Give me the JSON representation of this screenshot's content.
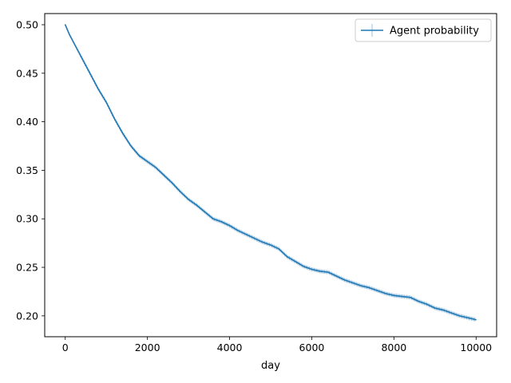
{
  "chart_data": {
    "type": "line",
    "xlabel": "day",
    "ylabel": "",
    "title": "",
    "xlim": [
      -500,
      10500
    ],
    "ylim": [
      0.1785,
      0.5115
    ],
    "xticks": [
      0,
      2000,
      4000,
      6000,
      8000,
      10000
    ],
    "xtick_labels": [
      "0",
      "2000",
      "4000",
      "6000",
      "8000",
      "10000"
    ],
    "yticks": [
      0.2,
      0.25,
      0.3,
      0.35,
      0.4,
      0.45,
      0.5
    ],
    "ytick_labels": [
      "0.20",
      "0.25",
      "0.30",
      "0.35",
      "0.40",
      "0.45",
      "0.50"
    ],
    "grid": false,
    "legend_position": "upper right",
    "series": [
      {
        "name": "Agent probability",
        "color": "#1f77b4",
        "error_bars": true,
        "x": [
          0,
          100,
          200,
          400,
          600,
          800,
          1000,
          1200,
          1400,
          1600,
          1800,
          2000,
          2200,
          2400,
          2600,
          2800,
          3000,
          3200,
          3400,
          3600,
          3800,
          4000,
          4200,
          4400,
          4600,
          4800,
          5000,
          5200,
          5400,
          5600,
          5800,
          6000,
          6200,
          6400,
          6600,
          6800,
          7000,
          7200,
          7400,
          7600,
          7800,
          8000,
          8200,
          8400,
          8600,
          8800,
          9000,
          9200,
          9400,
          9600,
          9800,
          10000
        ],
        "y": [
          0.5,
          0.49,
          0.482,
          0.466,
          0.45,
          0.434,
          0.42,
          0.403,
          0.388,
          0.375,
          0.365,
          0.359,
          0.353,
          0.345,
          0.337,
          0.328,
          0.32,
          0.314,
          0.307,
          0.3,
          0.297,
          0.293,
          0.288,
          0.284,
          0.28,
          0.276,
          0.273,
          0.269,
          0.261,
          0.256,
          0.251,
          0.248,
          0.246,
          0.245,
          0.241,
          0.237,
          0.234,
          0.231,
          0.229,
          0.226,
          0.223,
          0.221,
          0.22,
          0.219,
          0.215,
          0.212,
          0.208,
          0.206,
          0.203,
          0.2,
          0.198,
          0.196
        ],
        "yerr": [
          0.0,
          0.001,
          0.001,
          0.002,
          0.002,
          0.002,
          0.002,
          0.002,
          0.002,
          0.002,
          0.002,
          0.002,
          0.002,
          0.002,
          0.002,
          0.002,
          0.002,
          0.002,
          0.002,
          0.002,
          0.002,
          0.002,
          0.002,
          0.002,
          0.002,
          0.002,
          0.002,
          0.002,
          0.002,
          0.002,
          0.002,
          0.002,
          0.002,
          0.002,
          0.002,
          0.002,
          0.002,
          0.002,
          0.002,
          0.002,
          0.002,
          0.002,
          0.002,
          0.002,
          0.002,
          0.002,
          0.002,
          0.002,
          0.002,
          0.002,
          0.002,
          0.002
        ]
      }
    ]
  }
}
